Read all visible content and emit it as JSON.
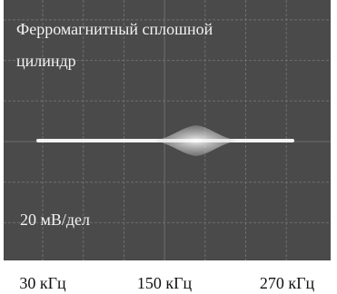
{
  "screen": {
    "annotation_lines": [
      "Ферромагнитный сплошной",
      "цилиндр"
    ],
    "scale_label": "20 мВ/дел"
  },
  "x_axis": {
    "labels": [
      "30 кГц",
      "150 кГц",
      "270 кГц"
    ]
  }
}
